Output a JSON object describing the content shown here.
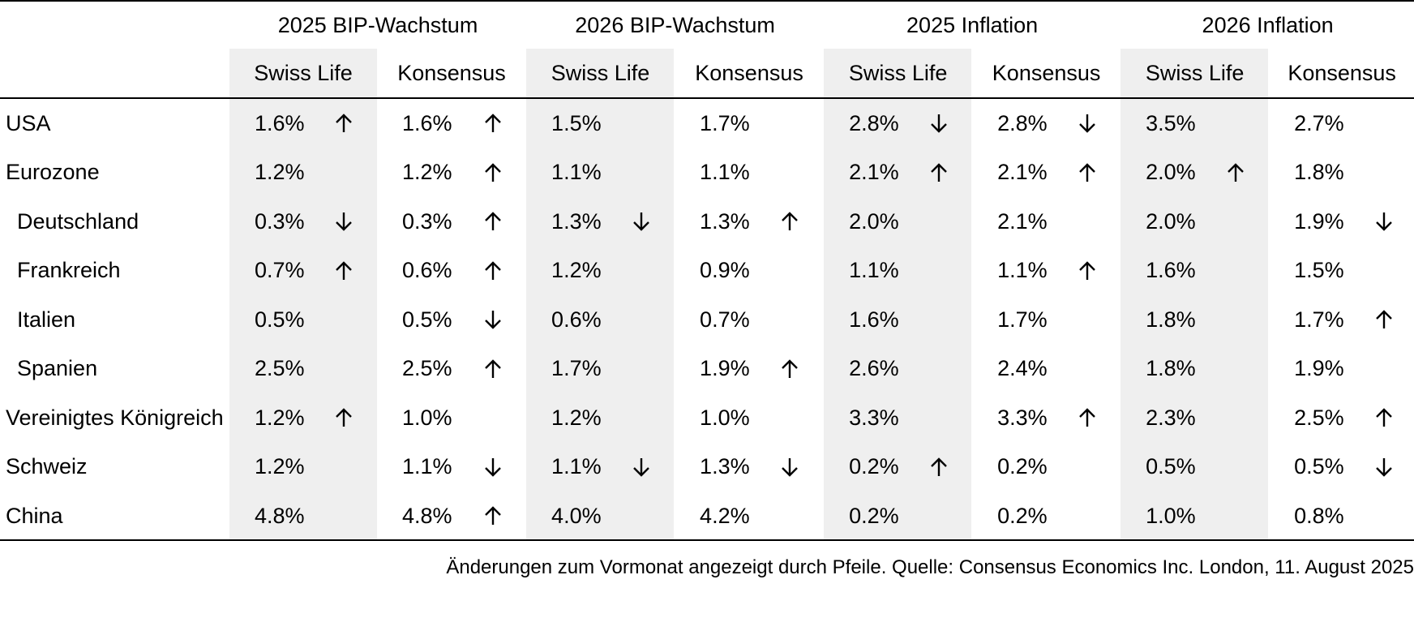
{
  "column_groups": [
    "2025 BIP-Wachstum",
    "2026 BIP-Wachstum",
    "2025 Inflation",
    "2026 Inflation"
  ],
  "sub_headers": [
    "Swiss Life",
    "Konsensus",
    "Swiss Life",
    "Konsensus",
    "Swiss Life",
    "Konsensus",
    "Swiss Life",
    "Konsensus"
  ],
  "rows": [
    {
      "country": "USA",
      "indent": false,
      "cells": [
        {
          "value": "1.6%",
          "arrow": "up"
        },
        {
          "value": "1.6%",
          "arrow": "up"
        },
        {
          "value": "1.5%",
          "arrow": ""
        },
        {
          "value": "1.7%",
          "arrow": ""
        },
        {
          "value": "2.8%",
          "arrow": "down"
        },
        {
          "value": "2.8%",
          "arrow": "down"
        },
        {
          "value": "3.5%",
          "arrow": ""
        },
        {
          "value": "2.7%",
          "arrow": ""
        }
      ]
    },
    {
      "country": "Eurozone",
      "indent": false,
      "cells": [
        {
          "value": "1.2%",
          "arrow": ""
        },
        {
          "value": "1.2%",
          "arrow": "up"
        },
        {
          "value": "1.1%",
          "arrow": ""
        },
        {
          "value": "1.1%",
          "arrow": ""
        },
        {
          "value": "2.1%",
          "arrow": "up"
        },
        {
          "value": "2.1%",
          "arrow": "up"
        },
        {
          "value": "2.0%",
          "arrow": "up"
        },
        {
          "value": "1.8%",
          "arrow": ""
        }
      ]
    },
    {
      "country": "Deutschland",
      "indent": true,
      "cells": [
        {
          "value": "0.3%",
          "arrow": "down"
        },
        {
          "value": "0.3%",
          "arrow": "up"
        },
        {
          "value": "1.3%",
          "arrow": "down"
        },
        {
          "value": "1.3%",
          "arrow": "up"
        },
        {
          "value": "2.0%",
          "arrow": ""
        },
        {
          "value": "2.1%",
          "arrow": ""
        },
        {
          "value": "2.0%",
          "arrow": ""
        },
        {
          "value": "1.9%",
          "arrow": "down"
        }
      ]
    },
    {
      "country": "Frankreich",
      "indent": true,
      "cells": [
        {
          "value": "0.7%",
          "arrow": "up"
        },
        {
          "value": "0.6%",
          "arrow": "up"
        },
        {
          "value": "1.2%",
          "arrow": ""
        },
        {
          "value": "0.9%",
          "arrow": ""
        },
        {
          "value": "1.1%",
          "arrow": ""
        },
        {
          "value": "1.1%",
          "arrow": "up"
        },
        {
          "value": "1.6%",
          "arrow": ""
        },
        {
          "value": "1.5%",
          "arrow": ""
        }
      ]
    },
    {
      "country": "Italien",
      "indent": true,
      "cells": [
        {
          "value": "0.5%",
          "arrow": ""
        },
        {
          "value": "0.5%",
          "arrow": "down"
        },
        {
          "value": "0.6%",
          "arrow": ""
        },
        {
          "value": "0.7%",
          "arrow": ""
        },
        {
          "value": "1.6%",
          "arrow": ""
        },
        {
          "value": "1.7%",
          "arrow": ""
        },
        {
          "value": "1.8%",
          "arrow": ""
        },
        {
          "value": "1.7%",
          "arrow": "up"
        }
      ]
    },
    {
      "country": "Spanien",
      "indent": true,
      "cells": [
        {
          "value": "2.5%",
          "arrow": ""
        },
        {
          "value": "2.5%",
          "arrow": "up"
        },
        {
          "value": "1.7%",
          "arrow": ""
        },
        {
          "value": "1.9%",
          "arrow": "up"
        },
        {
          "value": "2.6%",
          "arrow": ""
        },
        {
          "value": "2.4%",
          "arrow": ""
        },
        {
          "value": "1.8%",
          "arrow": ""
        },
        {
          "value": "1.9%",
          "arrow": ""
        }
      ]
    },
    {
      "country": "Vereinigtes Königreich",
      "indent": false,
      "cells": [
        {
          "value": "1.2%",
          "arrow": "up"
        },
        {
          "value": "1.0%",
          "arrow": ""
        },
        {
          "value": "1.2%",
          "arrow": ""
        },
        {
          "value": "1.0%",
          "arrow": ""
        },
        {
          "value": "3.3%",
          "arrow": ""
        },
        {
          "value": "3.3%",
          "arrow": "up"
        },
        {
          "value": "2.3%",
          "arrow": ""
        },
        {
          "value": "2.5%",
          "arrow": "up"
        }
      ]
    },
    {
      "country": "Schweiz",
      "indent": false,
      "cells": [
        {
          "value": "1.2%",
          "arrow": ""
        },
        {
          "value": "1.1%",
          "arrow": "down"
        },
        {
          "value": "1.1%",
          "arrow": "down"
        },
        {
          "value": "1.3%",
          "arrow": "down"
        },
        {
          "value": "0.2%",
          "arrow": "up"
        },
        {
          "value": "0.2%",
          "arrow": ""
        },
        {
          "value": "0.5%",
          "arrow": ""
        },
        {
          "value": "0.5%",
          "arrow": "down"
        }
      ]
    },
    {
      "country": "China",
      "indent": false,
      "cells": [
        {
          "value": "4.8%",
          "arrow": ""
        },
        {
          "value": "4.8%",
          "arrow": "up"
        },
        {
          "value": "4.0%",
          "arrow": ""
        },
        {
          "value": "4.2%",
          "arrow": ""
        },
        {
          "value": "0.2%",
          "arrow": ""
        },
        {
          "value": "0.2%",
          "arrow": ""
        },
        {
          "value": "1.0%",
          "arrow": ""
        },
        {
          "value": "0.8%",
          "arrow": ""
        }
      ]
    }
  ],
  "footnote": "Änderungen zum Vormonat angezeigt durch Pfeile. Quelle: Consensus Economics Inc. London, 11. August 2025",
  "colors": {
    "shade": "#efefef",
    "rule": "#000000",
    "text": "#000000"
  }
}
